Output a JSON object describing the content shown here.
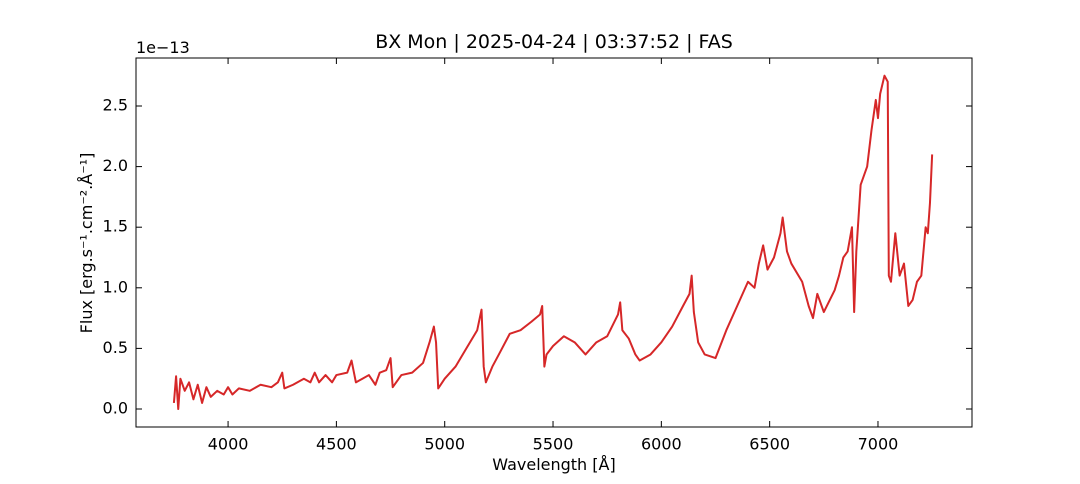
{
  "chart_data": {
    "type": "line",
    "title": "BX Mon | 2025-04-24 | 03:37:52 | FAS",
    "xlabel": "Wavelength [Å]",
    "ylabel": "Flux [erg.s⁻¹.cm⁻².Å⁻¹]",
    "y_offset": "1e−13",
    "color": "#d62728",
    "x": [
      3750,
      3760,
      3770,
      3780,
      3800,
      3820,
      3840,
      3860,
      3880,
      3900,
      3920,
      3950,
      3980,
      4000,
      4020,
      4050,
      4100,
      4150,
      4200,
      4230,
      4250,
      4260,
      4300,
      4350,
      4380,
      4400,
      4420,
      4450,
      4480,
      4500,
      4550,
      4570,
      4590,
      4620,
      4650,
      4680,
      4700,
      4730,
      4750,
      4760,
      4800,
      4850,
      4900,
      4930,
      4950,
      4960,
      4970,
      5000,
      5050,
      5100,
      5150,
      5170,
      5180,
      5190,
      5220,
      5250,
      5300,
      5350,
      5400,
      5440,
      5450,
      5460,
      5470,
      5500,
      5550,
      5600,
      5650,
      5700,
      5750,
      5800,
      5810,
      5820,
      5850,
      5880,
      5900,
      5950,
      6000,
      6050,
      6100,
      6130,
      6140,
      6150,
      6170,
      6200,
      6250,
      6300,
      6350,
      6400,
      6430,
      6450,
      6470,
      6490,
      6520,
      6550,
      6560,
      6580,
      6600,
      6650,
      6680,
      6700,
      6720,
      6750,
      6800,
      6820,
      6840,
      6860,
      6880,
      6890,
      6900,
      6920,
      6950,
      6970,
      6990,
      7000,
      7010,
      7030,
      7045,
      7050,
      7060,
      7080,
      7100,
      7120,
      7140,
      7160,
      7180,
      7200,
      7220,
      7230,
      7240,
      7250
    ],
    "values": [
      0.05,
      0.27,
      0.0,
      0.25,
      0.15,
      0.22,
      0.08,
      0.2,
      0.05,
      0.18,
      0.1,
      0.15,
      0.12,
      0.18,
      0.12,
      0.17,
      0.15,
      0.2,
      0.18,
      0.22,
      0.3,
      0.17,
      0.2,
      0.25,
      0.22,
      0.3,
      0.22,
      0.28,
      0.22,
      0.28,
      0.3,
      0.4,
      0.22,
      0.25,
      0.28,
      0.2,
      0.3,
      0.32,
      0.42,
      0.18,
      0.28,
      0.3,
      0.38,
      0.55,
      0.68,
      0.55,
      0.17,
      0.25,
      0.35,
      0.5,
      0.65,
      0.82,
      0.35,
      0.22,
      0.35,
      0.45,
      0.62,
      0.65,
      0.72,
      0.78,
      0.85,
      0.35,
      0.45,
      0.52,
      0.6,
      0.55,
      0.45,
      0.55,
      0.6,
      0.78,
      0.88,
      0.65,
      0.58,
      0.45,
      0.4,
      0.45,
      0.55,
      0.68,
      0.85,
      0.95,
      1.1,
      0.8,
      0.55,
      0.45,
      0.42,
      0.65,
      0.85,
      1.05,
      1.0,
      1.2,
      1.35,
      1.15,
      1.25,
      1.45,
      1.58,
      1.3,
      1.2,
      1.05,
      0.85,
      0.75,
      0.95,
      0.8,
      0.98,
      1.1,
      1.25,
      1.3,
      1.5,
      0.8,
      1.3,
      1.85,
      2.0,
      2.3,
      2.55,
      2.4,
      2.6,
      2.75,
      2.7,
      1.1,
      1.05,
      1.45,
      1.1,
      1.2,
      0.85,
      0.9,
      1.05,
      1.1,
      1.5,
      1.45,
      1.7,
      2.1
    ],
    "xlim": [
      3575,
      7434
    ],
    "xticks": [
      4000,
      4500,
      5000,
      5500,
      6000,
      6500,
      7000
    ],
    "ylim": [
      -0.1485,
      2.896
    ],
    "yticks": [
      {
        "value": 0,
        "label": "0.0"
      },
      0.5,
      {
        "value": 1,
        "label": "1.0"
      },
      1.5,
      {
        "value": 2,
        "label": "2.0"
      },
      2.5
    ]
  }
}
